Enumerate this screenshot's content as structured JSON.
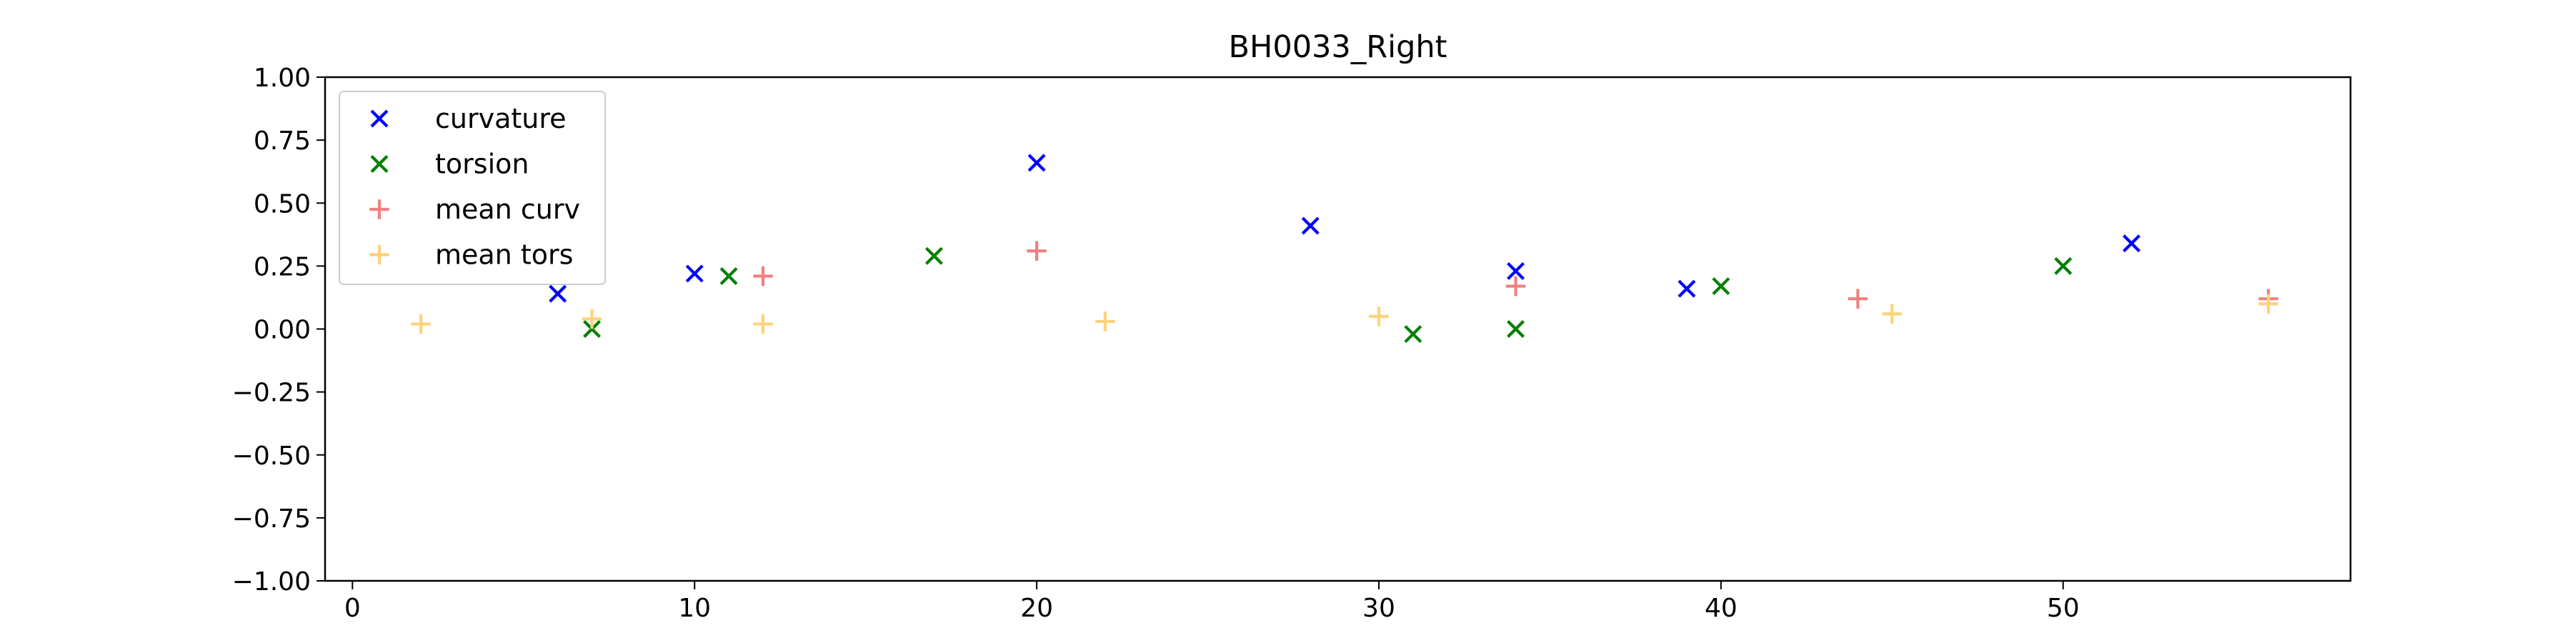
{
  "chart_data": {
    "type": "scatter",
    "title": "BH0033_Right",
    "xlabel": "",
    "ylabel": "",
    "xlim": [
      -0.8,
      58.4
    ],
    "ylim": [
      -1.0,
      1.0
    ],
    "x_ticks": [
      0,
      10,
      20,
      30,
      40,
      50
    ],
    "y_ticks": [
      1.0,
      0.75,
      0.5,
      0.25,
      0.0,
      -0.25,
      -0.5,
      -0.75,
      -1.0
    ],
    "x_tick_labels": [
      "0",
      "10",
      "20",
      "30",
      "40",
      "50"
    ],
    "y_tick_labels": [
      "1.00",
      "0.75",
      "0.50",
      "0.25",
      "0.00",
      "−0.25",
      "−0.50",
      "−0.75",
      "−1.00"
    ],
    "grid": false,
    "legend_position": "upper-left",
    "series": [
      {
        "name": "curvature",
        "marker": "x",
        "color": "#0000ff",
        "points": [
          [
            6,
            0.14
          ],
          [
            10,
            0.22
          ],
          [
            20,
            0.66
          ],
          [
            28,
            0.41
          ],
          [
            34,
            0.23
          ],
          [
            39,
            0.16
          ],
          [
            52,
            0.34
          ]
        ]
      },
      {
        "name": "torsion",
        "marker": "x",
        "color": "#008000",
        "points": [
          [
            7,
            0.0
          ],
          [
            11,
            0.21
          ],
          [
            17,
            0.29
          ],
          [
            31,
            -0.02
          ],
          [
            34,
            0.0
          ],
          [
            40,
            0.17
          ],
          [
            50,
            0.25
          ]
        ]
      },
      {
        "name": "mean curv",
        "marker": "+",
        "color": "#f08080",
        "points": [
          [
            12,
            0.21
          ],
          [
            20,
            0.31
          ],
          [
            34,
            0.17
          ],
          [
            44,
            0.12
          ],
          [
            56,
            0.12
          ]
        ]
      },
      {
        "name": "mean tors",
        "marker": "+",
        "color": "#ffd27a",
        "points": [
          [
            2,
            0.02
          ],
          [
            7,
            0.04
          ],
          [
            12,
            0.02
          ],
          [
            22,
            0.03
          ],
          [
            30,
            0.05
          ],
          [
            45,
            0.06
          ],
          [
            56,
            0.1
          ]
        ]
      }
    ]
  }
}
